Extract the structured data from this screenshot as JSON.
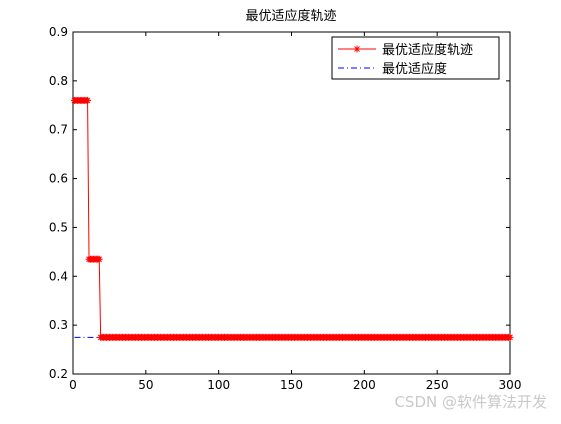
{
  "chart_data": {
    "type": "line",
    "title": "最优适应度轨迹",
    "xlabel": "",
    "ylabel": "",
    "xlim": [
      0,
      300
    ],
    "ylim": [
      0.2,
      0.9
    ],
    "xticks": [
      0,
      50,
      100,
      150,
      200,
      250,
      300
    ],
    "yticks": [
      0.2,
      0.3,
      0.4,
      0.5,
      0.6,
      0.7,
      0.8,
      0.9
    ],
    "grid": false,
    "legend_position": "top-right",
    "series": [
      {
        "name": "最优适应度轨迹",
        "style": "solid-asterisk",
        "color": "#ff0000",
        "points": [
          [
            1,
            0.76
          ],
          [
            10,
            0.76
          ],
          [
            11,
            0.435
          ],
          [
            18,
            0.435
          ],
          [
            19,
            0.275
          ],
          [
            300,
            0.275
          ]
        ]
      },
      {
        "name": "最优适应度",
        "style": "dashdot",
        "color": "#0000ff",
        "points": [
          [
            1,
            0.275
          ],
          [
            300,
            0.275
          ]
        ]
      }
    ]
  },
  "watermark": "CSDN @软件算法开发"
}
